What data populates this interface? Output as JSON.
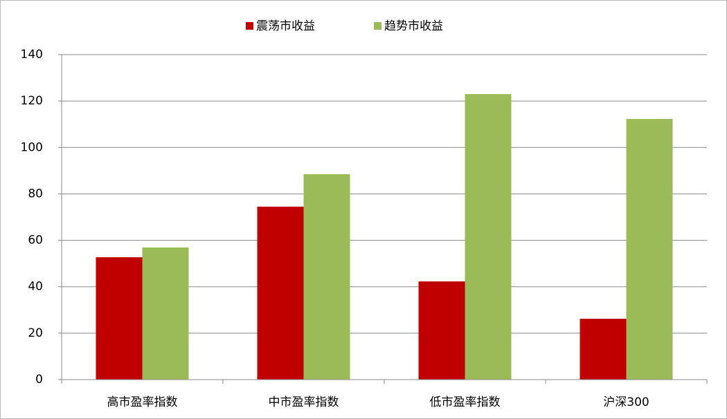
{
  "chart_data": {
    "type": "bar",
    "categories": [
      "高市盈率指数",
      "中市盈率指数",
      "低市盈率指数",
      "沪深300"
    ],
    "series": [
      {
        "name": "震荡市收益",
        "color": "#c00000",
        "values": [
          52.7,
          74.5,
          42.3,
          26.2
        ]
      },
      {
        "name": "趋势市收益",
        "color": "#9bbb59",
        "values": [
          56.9,
          88.5,
          123,
          112.3
        ]
      }
    ],
    "ylim": [
      0,
      140
    ],
    "yticks": [
      0,
      20,
      40,
      60,
      80,
      100,
      120,
      140
    ],
    "grid": true,
    "legend": "top"
  }
}
